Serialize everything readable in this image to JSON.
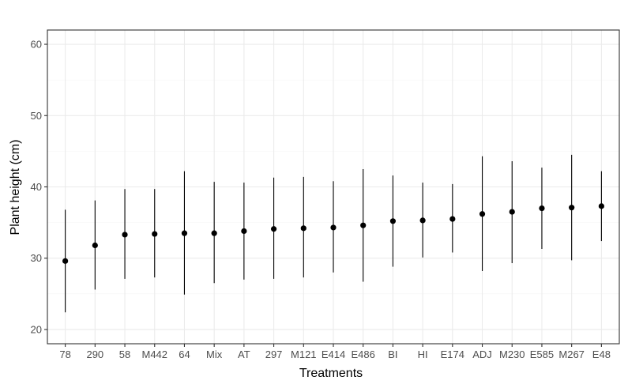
{
  "chart_data": {
    "type": "scatter",
    "subtype": "point-range",
    "xlabel": "Treatments",
    "ylabel": "Plant height (cm)",
    "ylim": [
      18,
      62
    ],
    "yticks": [
      20,
      30,
      40,
      50,
      60
    ],
    "grid": true,
    "legend": "none",
    "categories": [
      "78",
      "290",
      "58",
      "M442",
      "64",
      "Mix",
      "AT",
      "297",
      "M121",
      "E414",
      "E486",
      "BI",
      "HI",
      "E174",
      "ADJ",
      "M230",
      "E585",
      "M267",
      "E48"
    ],
    "series": [
      {
        "values": [
          29.6,
          31.8,
          33.3,
          33.4,
          33.5,
          33.5,
          33.8,
          34.1,
          34.2,
          34.3,
          34.6,
          35.2,
          35.3,
          35.5,
          36.2,
          36.5,
          37.0,
          37.1,
          37.3
        ],
        "lower": [
          22.4,
          25.6,
          27.1,
          27.3,
          24.9,
          26.5,
          27.0,
          27.1,
          27.3,
          28.0,
          26.7,
          28.8,
          30.1,
          30.8,
          28.2,
          29.3,
          31.3,
          29.7,
          32.4
        ],
        "upper": [
          36.8,
          38.1,
          39.7,
          39.7,
          42.2,
          40.7,
          40.6,
          41.3,
          41.4,
          40.8,
          42.5,
          41.6,
          40.6,
          40.4,
          44.3,
          43.6,
          42.7,
          44.5,
          42.2
        ]
      }
    ],
    "colors": {
      "point": "#000000",
      "panel_border": "#333333",
      "grid_major": "#ebebeb",
      "grid_minor": "#f5f5f5",
      "tick_text": "#4d4d4d"
    }
  }
}
